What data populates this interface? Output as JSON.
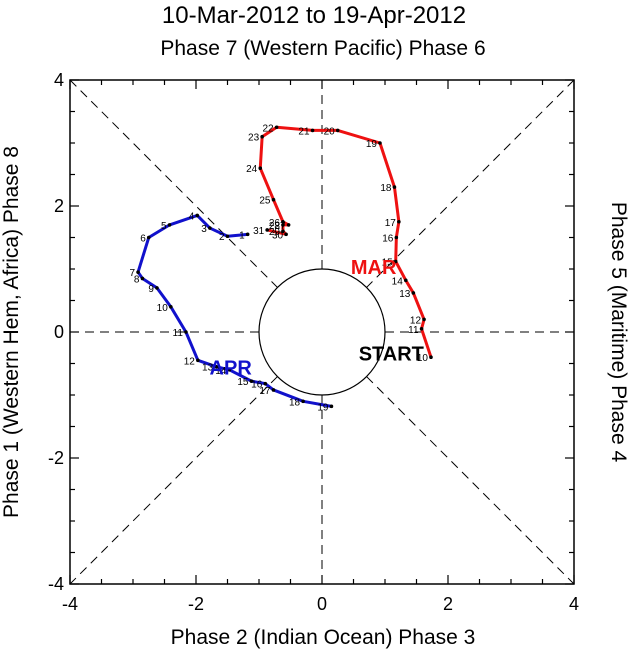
{
  "chart_data": {
    "type": "line",
    "title": "10-Mar-2012 to 19-Apr-2012",
    "top_label": "Phase 7 (Western Pacific) Phase 6",
    "bottom_label": "Phase 2 (Indian Ocean) Phase 3",
    "left_label": "Phase 1 (Western Hem, Africa) Phase 8",
    "right_label": "Phase 5 (Maritime) Phase 4",
    "xlim": [
      -4,
      4
    ],
    "ylim": [
      -4,
      4
    ],
    "x_ticks": [
      "-4",
      "-2",
      "0",
      "2",
      "4"
    ],
    "y_ticks": [
      "-4",
      "-2",
      "0",
      "2",
      "4"
    ],
    "start_label": "START",
    "colors": {
      "mar": "#ee1111",
      "apr": "#1111cc",
      "axes": "#000000"
    },
    "series": [
      {
        "name": "MAR",
        "color": "#ee1111",
        "label_pos": [
          0.82,
          1.05
        ],
        "days": [
          "10",
          "11",
          "12",
          "13",
          "14",
          "15",
          "16",
          "17",
          "18",
          "19",
          "20",
          "21",
          "22",
          "23",
          "24",
          "25",
          "26",
          "27",
          "28",
          "29",
          "30",
          "31"
        ],
        "x": [
          1.73,
          1.58,
          1.62,
          1.45,
          1.33,
          1.17,
          1.18,
          1.22,
          1.15,
          0.92,
          0.25,
          -0.15,
          -0.72,
          -0.95,
          -0.98,
          -0.77,
          -0.62,
          -0.53,
          -0.62,
          -0.62,
          -0.57,
          -0.87
        ],
        "y": [
          -0.4,
          0.05,
          0.2,
          0.62,
          0.82,
          1.12,
          1.5,
          1.75,
          2.3,
          3.0,
          3.2,
          3.2,
          3.25,
          3.1,
          2.6,
          2.1,
          1.75,
          1.7,
          1.7,
          1.6,
          1.55,
          1.62
        ]
      },
      {
        "name": "APR",
        "color": "#1111cc",
        "label_pos": [
          -1.45,
          -0.55
        ],
        "days": [
          "1",
          "2",
          "3",
          "4",
          "5",
          "6",
          "7",
          "8",
          "9",
          "10",
          "11",
          "12",
          "13",
          "14",
          "15",
          "16",
          "17",
          "18",
          "19"
        ],
        "x": [
          -1.18,
          -1.5,
          -1.78,
          -1.98,
          -2.42,
          -2.75,
          -2.92,
          -2.85,
          -2.62,
          -2.4,
          -2.16,
          -1.97,
          -1.68,
          -1.47,
          -1.12,
          -0.9,
          -0.77,
          -0.3,
          0.15
        ],
        "y": [
          1.55,
          1.52,
          1.65,
          1.85,
          1.7,
          1.5,
          0.95,
          0.85,
          0.7,
          0.4,
          0.0,
          -0.45,
          -0.55,
          -0.6,
          -0.78,
          -0.82,
          -0.92,
          -1.1,
          -1.18
        ]
      }
    ]
  }
}
